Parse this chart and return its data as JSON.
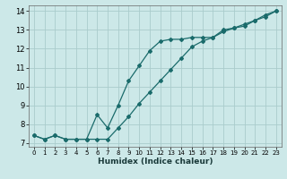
{
  "xlabel": "Humidex (Indice chaleur)",
  "bg_color": "#cce8e8",
  "grid_color": "#aacccc",
  "line_color": "#1a6b6b",
  "xlim": [
    -0.5,
    23.5
  ],
  "ylim": [
    6.8,
    14.3
  ],
  "xticks": [
    0,
    1,
    2,
    3,
    4,
    5,
    6,
    7,
    8,
    9,
    10,
    11,
    12,
    13,
    14,
    15,
    16,
    17,
    18,
    19,
    20,
    21,
    22,
    23
  ],
  "yticks": [
    7,
    8,
    9,
    10,
    11,
    12,
    13,
    14
  ],
  "line1_x": [
    0,
    1,
    2,
    3,
    4,
    5,
    6,
    7,
    8,
    9,
    10,
    11,
    12,
    13,
    14,
    15,
    16,
    17,
    18,
    19,
    20,
    21,
    22,
    23
  ],
  "line1_y": [
    7.4,
    7.2,
    7.4,
    7.2,
    7.2,
    7.2,
    7.2,
    7.2,
    7.8,
    8.4,
    9.1,
    9.7,
    10.3,
    10.9,
    11.5,
    12.1,
    12.4,
    12.6,
    12.9,
    13.1,
    13.3,
    13.5,
    13.7,
    14.0
  ],
  "line2_x": [
    0,
    1,
    2,
    3,
    4,
    5,
    6,
    7,
    8,
    9,
    10,
    11,
    12,
    13,
    14,
    15,
    16,
    17,
    18,
    19,
    20,
    21,
    22,
    23
  ],
  "line2_y": [
    7.4,
    7.2,
    7.4,
    7.2,
    7.2,
    7.2,
    8.5,
    7.8,
    9.0,
    10.3,
    11.1,
    11.9,
    12.4,
    12.5,
    12.5,
    12.6,
    12.6,
    12.6,
    13.0,
    13.1,
    13.2,
    13.5,
    13.8,
    14.0
  ]
}
